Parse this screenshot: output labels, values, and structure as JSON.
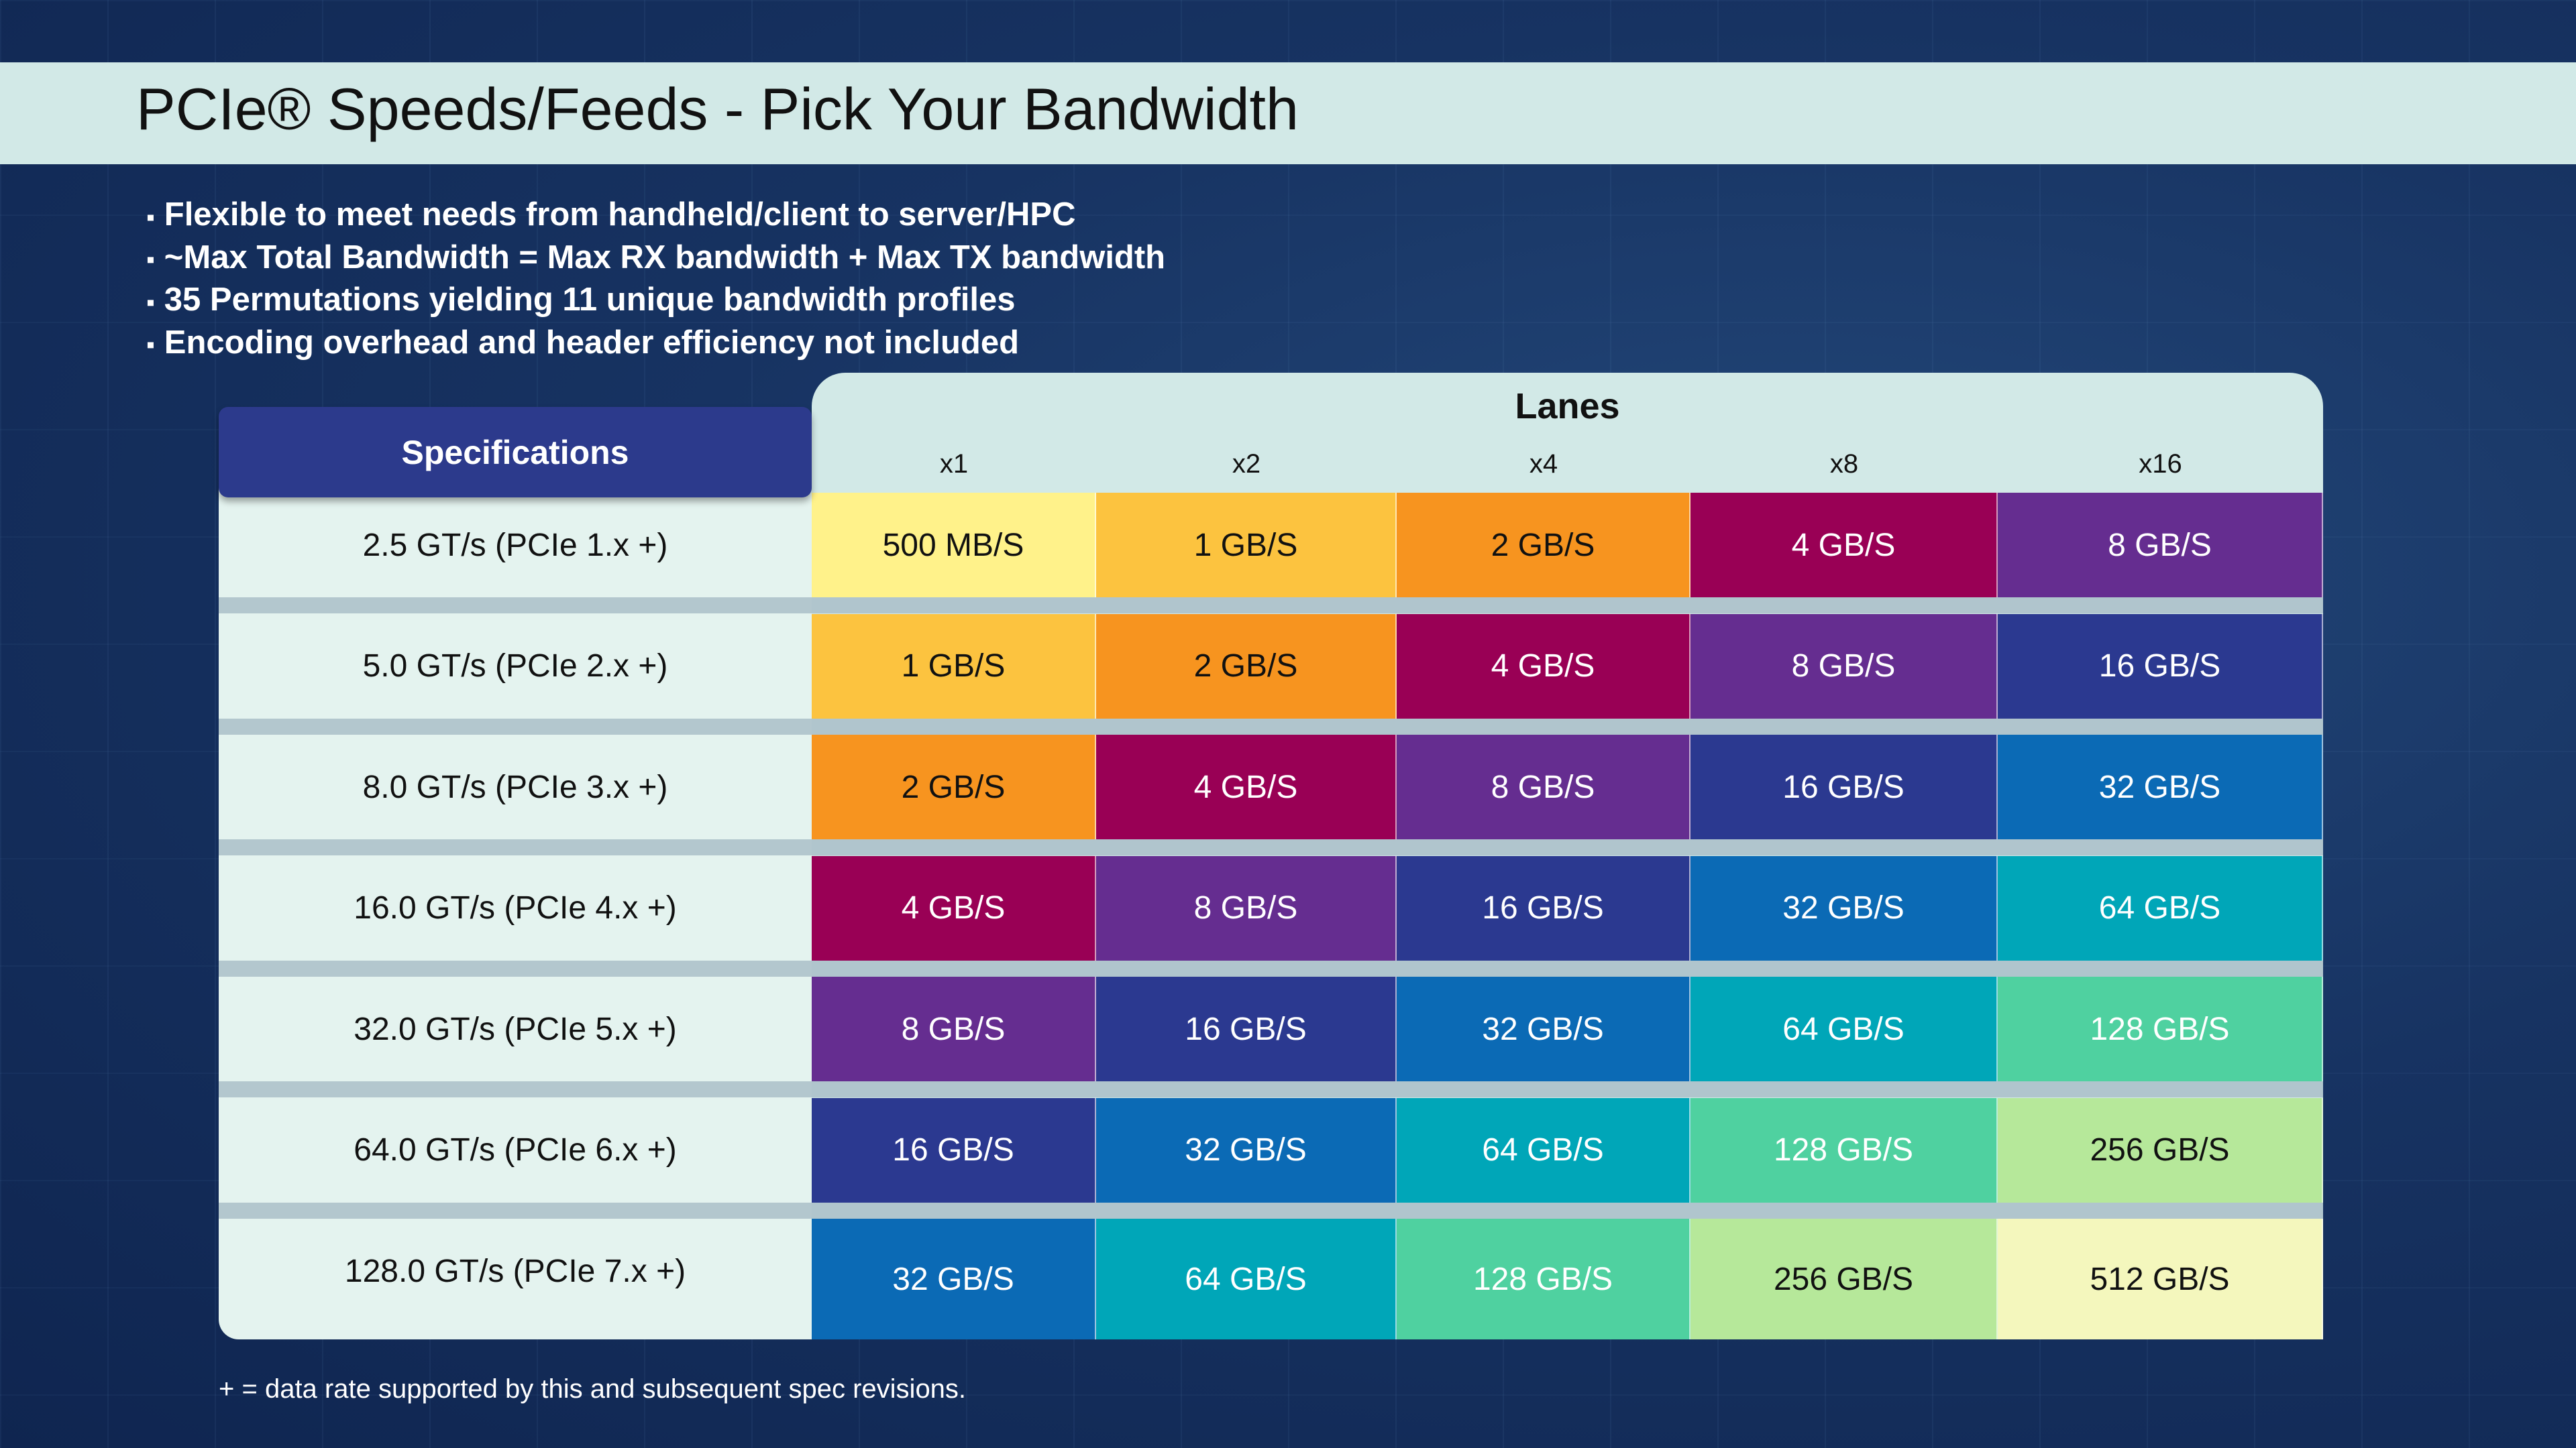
{
  "title": "PCIe® Speeds/Feeds - Pick Your Bandwidth",
  "bullets": [
    "Flexible to meet needs from handheld/client to server/HPC",
    "~Max Total Bandwidth = Max RX bandwidth + Max TX bandwidth",
    "35 Permutations yielding 11 unique bandwidth profiles",
    "Encoding overhead and header efficiency not included"
  ],
  "table": {
    "spec_header": "Specifications",
    "lanes_header": "Lanes",
    "columns": [
      "x1",
      "x2",
      "x4",
      "x8",
      "x16"
    ],
    "rows": [
      {
        "spec": "2.5 GT/s (PCIe 1.x +)",
        "cells": [
          "500 MB/S",
          "1 GB/S",
          "2 GB/S",
          "4 GB/S",
          "8 GB/S"
        ]
      },
      {
        "spec": "5.0 GT/s (PCIe 2.x +)",
        "cells": [
          "1 GB/S",
          "2 GB/S",
          "4 GB/S",
          "8 GB/S",
          "16 GB/S"
        ]
      },
      {
        "spec": "8.0 GT/s (PCIe 3.x +)",
        "cells": [
          "2 GB/S",
          "4 GB/S",
          "8 GB/S",
          "16 GB/S",
          "32 GB/S"
        ]
      },
      {
        "spec": "16.0 GT/s (PCIe 4.x +)",
        "cells": [
          "4 GB/S",
          "8 GB/S",
          "16 GB/S",
          "32 GB/S",
          "64 GB/S"
        ]
      },
      {
        "spec": "32.0 GT/s (PCIe 5.x +)",
        "cells": [
          "8 GB/S",
          "16 GB/S",
          "32 GB/S",
          "64 GB/S",
          "128 GB/S"
        ]
      },
      {
        "spec": "64.0 GT/s (PCIe 6.x +)",
        "cells": [
          "16 GB/S",
          "32 GB/S",
          "64 GB/S",
          "128 GB/S",
          "256 GB/S"
        ]
      },
      {
        "spec": "128.0 GT/s (PCIe 7.x +)",
        "cells": [
          "32 GB/S",
          "64 GB/S",
          "128 GB/S",
          "256 GB/S",
          "512 GB/S"
        ]
      }
    ]
  },
  "bandwidth_colors": {
    "500 MB/S": "#fff28a",
    "1 GB/S": "#fcc33f",
    "2 GB/S": "#f7941f",
    "4 GB/S": "#990055",
    "8 GB/S": "#652d90",
    "16 GB/S": "#2b3990",
    "32 GB/S": "#0b6ab5",
    "64 GB/S": "#00a6b8",
    "128 GB/S": "#4fd1a0",
    "256 GB/S": "#b6e89a",
    "512 GB/S": "#f4f7bd"
  },
  "footnote": "+ = data rate supported by this and subsequent spec revisions."
}
